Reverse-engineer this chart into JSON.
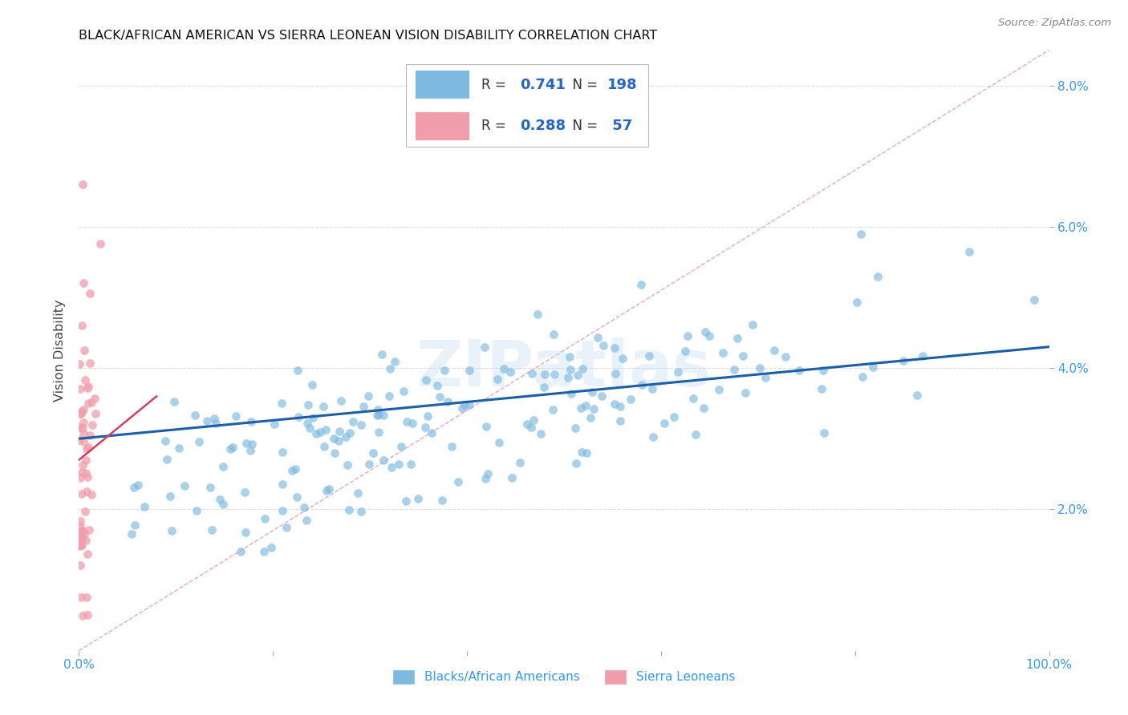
{
  "title": "BLACK/AFRICAN AMERICAN VS SIERRA LEONEAN VISION DISABILITY CORRELATION CHART",
  "source": "Source: ZipAtlas.com",
  "ylabel": "Vision Disability",
  "xlim": [
    0,
    1.0
  ],
  "ylim": [
    0,
    0.085
  ],
  "xticks": [
    0,
    0.2,
    0.4,
    0.6,
    0.8,
    1.0
  ],
  "xticklabels": [
    "0.0%",
    "",
    "",
    "",
    "",
    "100.0%"
  ],
  "yticks": [
    0.02,
    0.04,
    0.06,
    0.08
  ],
  "yticklabels": [
    "2.0%",
    "4.0%",
    "6.0%",
    "8.0%"
  ],
  "blue_color": "#7db9e0",
  "pink_color": "#f29dab",
  "trend_blue": "#1a5fa8",
  "trend_pink": "#d44060",
  "diag_color": "#e8a0b0",
  "tick_color": "#3399ff",
  "watermark": "ZIPatlas",
  "legend_r_blue": "0.741",
  "legend_n_blue": "198",
  "legend_r_pink": "0.288",
  "legend_n_pink": "57",
  "legend_label_blue": "Blacks/African Americans",
  "legend_label_pink": "Sierra Leoneans",
  "blue_n": 198,
  "pink_n": 57
}
